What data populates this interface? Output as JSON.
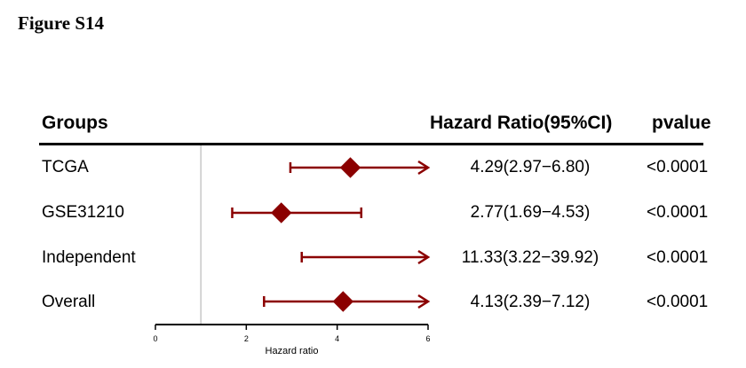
{
  "figure_label": "Figure S14",
  "headers": {
    "groups": "Groups",
    "hazard_ratio": "Hazard Ratio(95%CI)",
    "pvalue": "pvalue"
  },
  "rows": [
    {
      "group": "TCGA",
      "hr_text": "4.29(2.97−6.80)",
      "pvalue": "<0.0001"
    },
    {
      "group": "GSE31210",
      "hr_text": "2.77(1.69−4.53)",
      "pvalue": "<0.0001"
    },
    {
      "group": "Independent",
      "hr_text": "11.33(3.22−39.92)",
      "pvalue": "<0.0001"
    },
    {
      "group": "Overall",
      "hr_text": "4.13(2.39−7.12)",
      "pvalue": "<0.0001"
    }
  ],
  "chart_data": {
    "type": "forest",
    "xlabel": "Hazard ratio",
    "xlim": [
      0,
      6
    ],
    "xticks": [
      0,
      2,
      4,
      6
    ],
    "reference_line": 1,
    "marker_color": "#8b0000",
    "series": [
      {
        "name": "TCGA",
        "hr": 4.29,
        "lower": 2.97,
        "upper": 6.8
      },
      {
        "name": "GSE31210",
        "hr": 2.77,
        "lower": 1.69,
        "upper": 4.53
      },
      {
        "name": "Independent",
        "hr": 11.33,
        "lower": 3.22,
        "upper": 39.92
      },
      {
        "name": "Overall",
        "hr": 4.13,
        "lower": 2.39,
        "upper": 7.12
      }
    ]
  }
}
